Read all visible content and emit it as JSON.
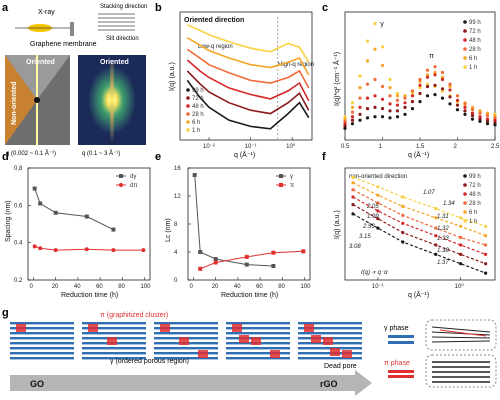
{
  "panel_labels": [
    "a",
    "b",
    "c",
    "d",
    "e",
    "f",
    "g"
  ],
  "panel_a": {
    "xray_label": "X-ray",
    "membrane_label": "Graphene membrane",
    "stacking_label": "Stacking direction",
    "slit_label": "Slit direction",
    "oriented_label": "Oriented",
    "nonoriented_label": "Non-oriented",
    "left_range": "q (0.002 ~ 0.1 Å⁻¹)",
    "right_range": "q (0.1 ~ 3 Å⁻¹)"
  },
  "panel_g": {
    "pi_cluster_label": "π (graphitized cluster)",
    "gamma_region_label": "γ (ordered porous region)",
    "dead_pore_label": "Dead pore",
    "gamma_phase_label": "γ phase",
    "pi_phase_label": "π phase",
    "start_label": "GO",
    "end_label": "rGO"
  },
  "colors": {
    "h99": "#1a1a1a",
    "h72": "#8b1a1a",
    "h48": "#d62728",
    "h28": "#f06a3a",
    "h6": "#f5a623",
    "h1": "#f7d23e",
    "gamma": "#555555",
    "pi": "#e03030",
    "membrane_blue": "#2f6fb2"
  },
  "chart_data": [
    {
      "panel": "b",
      "type": "line",
      "title": "Oriented direction",
      "xlabel": "q (Å⁻¹)",
      "ylabel": "I(q) (a.u.)",
      "x_scale": "log",
      "y_scale": "log",
      "xlim": [
        0.002,
        3
      ],
      "x_ticks": [
        "10⁻²",
        "10⁻¹",
        "10⁰"
      ],
      "annotations": [
        "Low-q region",
        "High-q region"
      ],
      "legend": [
        "99 h",
        "72 h",
        "48 h",
        "28 h",
        "6 h",
        "1 h"
      ],
      "series": [
        {
          "name": "99 h",
          "x": [
            0.003,
            0.006,
            0.01,
            0.03,
            0.1,
            0.3,
            0.8,
            1.5,
            2.5
          ],
          "y": [
            3.0,
            1.2,
            0.7,
            0.35,
            0.25,
            0.22,
            0.5,
            0.9,
            0.4
          ]
        },
        {
          "name": "72 h",
          "x": [
            0.003,
            0.006,
            0.01,
            0.03,
            0.1,
            0.3,
            0.8,
            1.5,
            2.5
          ],
          "y": [
            5.0,
            2.5,
            1.6,
            0.9,
            0.6,
            0.5,
            0.9,
            1.5,
            0.6
          ]
        },
        {
          "name": "48 h",
          "x": [
            0.003,
            0.006,
            0.01,
            0.03,
            0.1,
            0.3,
            0.8,
            1.5,
            2.5
          ],
          "y": [
            9.0,
            5.0,
            3.5,
            2.0,
            1.4,
            1.1,
            1.7,
            2.6,
            1.0
          ]
        },
        {
          "name": "28 h",
          "x": [
            0.003,
            0.006,
            0.01,
            0.03,
            0.1,
            0.3,
            0.8,
            1.5,
            2.5
          ],
          "y": [
            16.0,
            10.0,
            7.0,
            4.5,
            3.0,
            2.6,
            3.5,
            5.0,
            2.0
          ]
        },
        {
          "name": "6 h",
          "x": [
            0.003,
            0.006,
            0.01,
            0.03,
            0.1,
            0.3,
            0.8,
            1.5,
            2.5
          ],
          "y": [
            30.0,
            20.0,
            15.0,
            10.0,
            7.0,
            6.0,
            8.0,
            10.0,
            4.0
          ]
        },
        {
          "name": "1 h",
          "x": [
            0.003,
            0.006,
            0.01,
            0.03,
            0.1,
            0.3,
            0.8,
            1.5,
            2.5
          ],
          "y": [
            60.0,
            45.0,
            35.0,
            24.0,
            17.0,
            14.0,
            22.0,
            18.0,
            8.0
          ]
        }
      ]
    },
    {
      "panel": "c",
      "type": "scatter",
      "xlabel": "q (Å⁻¹)",
      "ylabel": "I(q)*q² (cm⁻¹ Å⁻¹)",
      "xlim": [
        0.5,
        2.5
      ],
      "x_ticks": [
        0.5,
        1.0,
        1.5,
        2.0,
        2.5
      ],
      "annotations": [
        "γ",
        "π"
      ],
      "legend": [
        "99 h",
        "72 h",
        "48 h",
        "28 h",
        "6 h",
        "1 h"
      ],
      "series": [
        {
          "name": "1 h",
          "x": [
            0.5,
            0.6,
            0.7,
            0.8,
            0.9,
            1.0,
            1.1,
            1.2,
            1.3,
            1.4,
            1.5,
            1.6,
            1.7,
            1.8,
            1.9,
            2.0,
            2.1,
            2.2,
            2.3,
            2.4,
            2.5
          ],
          "y": [
            20,
            32,
            55,
            85,
            100,
            80,
            52,
            40,
            38,
            40,
            45,
            48,
            46,
            42,
            38,
            33,
            30,
            27,
            25,
            23,
            22
          ]
        },
        {
          "name": "6 h",
          "x": [
            0.5,
            0.6,
            0.7,
            0.8,
            0.9,
            1.0,
            1.1,
            1.2,
            1.3,
            1.4,
            1.5,
            1.6,
            1.7,
            1.8,
            1.9,
            2.0,
            2.1,
            2.2,
            2.3,
            2.4,
            2.5
          ],
          "y": [
            18,
            28,
            45,
            68,
            78,
            64,
            45,
            38,
            38,
            42,
            50,
            56,
            58,
            54,
            46,
            38,
            32,
            28,
            25,
            23,
            21
          ]
        },
        {
          "name": "28 h",
          "x": [
            0.5,
            0.6,
            0.7,
            0.8,
            0.9,
            1.0,
            1.1,
            1.2,
            1.3,
            1.4,
            1.5,
            1.6,
            1.7,
            1.8,
            1.9,
            2.0,
            2.1,
            2.2,
            2.3,
            2.4,
            2.5
          ],
          "y": [
            16,
            24,
            36,
            48,
            52,
            46,
            38,
            34,
            36,
            42,
            52,
            60,
            63,
            58,
            48,
            38,
            31,
            26,
            23,
            21,
            19
          ]
        },
        {
          "name": "48 h",
          "x": [
            0.5,
            0.6,
            0.7,
            0.8,
            0.9,
            1.0,
            1.1,
            1.2,
            1.3,
            1.4,
            1.5,
            1.6,
            1.7,
            1.8,
            1.9,
            2.0,
            2.1,
            2.2,
            2.3,
            2.4,
            2.5
          ],
          "y": [
            14,
            20,
            28,
            36,
            38,
            35,
            31,
            30,
            32,
            38,
            47,
            54,
            56,
            52,
            43,
            34,
            28,
            23,
            20,
            18,
            17
          ]
        },
        {
          "name": "72 h",
          "x": [
            0.5,
            0.6,
            0.7,
            0.8,
            0.9,
            1.0,
            1.1,
            1.2,
            1.3,
            1.4,
            1.5,
            1.6,
            1.7,
            1.8,
            1.9,
            2.0,
            2.1,
            2.2,
            2.3,
            2.4,
            2.5
          ],
          "y": [
            12,
            17,
            22,
            27,
            28,
            27,
            25,
            25,
            28,
            33,
            40,
            46,
            47,
            44,
            37,
            30,
            25,
            21,
            18,
            16,
            15
          ]
        },
        {
          "name": "99 h",
          "x": [
            0.5,
            0.6,
            0.7,
            0.8,
            0.9,
            1.0,
            1.1,
            1.2,
            1.3,
            1.4,
            1.5,
            1.6,
            1.7,
            1.8,
            1.9,
            2.0,
            2.1,
            2.2,
            2.3,
            2.4,
            2.5
          ],
          "y": [
            10,
            14,
            17,
            19,
            20,
            20,
            19,
            20,
            22,
            27,
            33,
            38,
            39,
            36,
            31,
            26,
            22,
            18,
            16,
            14,
            13
          ]
        }
      ]
    },
    {
      "panel": "d",
      "type": "line",
      "xlabel": "Reduction time (h)",
      "ylabel": "Spacing (nm)",
      "xlim": [
        -5,
        105
      ],
      "ylim": [
        0.2,
        0.8
      ],
      "x_ticks": [
        0,
        20,
        40,
        60,
        80,
        100
      ],
      "y_ticks": [
        0.2,
        0.4,
        0.6,
        0.8
      ],
      "legend": [
        "dγ",
        "dπ"
      ],
      "series": [
        {
          "name": "dγ",
          "x": [
            1,
            6,
            20,
            48,
            72
          ],
          "y": [
            0.69,
            0.61,
            0.56,
            0.54,
            0.47
          ]
        },
        {
          "name": "dπ",
          "x": [
            1,
            6,
            20,
            48,
            72,
            99
          ],
          "y": [
            0.38,
            0.37,
            0.36,
            0.365,
            0.36,
            0.36
          ]
        }
      ]
    },
    {
      "panel": "e",
      "type": "line",
      "xlabel": "Reduction time (h)",
      "ylabel": "Lc (nm)",
      "xlim": [
        -5,
        105
      ],
      "ylim": [
        0,
        16
      ],
      "x_ticks": [
        0,
        20,
        40,
        60,
        80,
        100
      ],
      "y_ticks": [
        0,
        4,
        8,
        12,
        16
      ],
      "legend": [
        "γ",
        "π"
      ],
      "series": [
        {
          "name": "γ",
          "x": [
            1,
            6,
            20,
            48,
            72
          ],
          "y": [
            15.0,
            4.0,
            3.0,
            2.2,
            2.0
          ]
        },
        {
          "name": "π",
          "x": [
            6,
            20,
            48,
            72,
            99
          ],
          "y": [
            1.6,
            2.5,
            3.3,
            3.9,
            4.1
          ]
        }
      ]
    },
    {
      "panel": "f",
      "type": "scatter",
      "title": "non-oriented direction",
      "xlabel": "q (Å⁻¹)",
      "ylabel": "I(q) (a.u.)",
      "x_scale": "log",
      "y_scale": "log",
      "x_ticks": [
        "10⁻¹",
        "10⁰"
      ],
      "annotations": [
        "1.07",
        "1.34",
        "1.31",
        "1.32",
        "1.33",
        "1.38",
        "1.37",
        "2.05",
        "1.99",
        "2.53",
        "3.15",
        "3.08",
        "I(q) ∝ q⁻α"
      ],
      "legend": [
        "99 h",
        "72 h",
        "48 h",
        "28 h",
        "6 h",
        "1 h"
      ],
      "series": [
        {
          "name": "1 h",
          "x": [
            0.05,
            0.1,
            0.2,
            0.5,
            1.0,
            2.0
          ],
          "y": [
            300,
            150,
            70,
            30,
            15,
            8
          ]
        },
        {
          "name": "6 h",
          "x": [
            0.05,
            0.1,
            0.2,
            0.5,
            1.0,
            2.0
          ],
          "y": [
            200,
            80,
            35,
            15,
            8,
            4
          ]
        },
        {
          "name": "28 h",
          "x": [
            0.05,
            0.1,
            0.2,
            0.5,
            1.0,
            2.0
          ],
          "y": [
            120,
            45,
            18,
            7,
            3.5,
            2
          ]
        },
        {
          "name": "48 h",
          "x": [
            0.05,
            0.1,
            0.2,
            0.5,
            1.0,
            2.0
          ],
          "y": [
            70,
            25,
            10,
            4,
            2,
            1
          ]
        },
        {
          "name": "72 h",
          "x": [
            0.05,
            0.1,
            0.2,
            0.5,
            1.0,
            2.0
          ],
          "y": [
            40,
            14,
            5,
            2,
            1,
            0.5
          ]
        },
        {
          "name": "99 h",
          "x": [
            0.05,
            0.1,
            0.2,
            0.5,
            1.0,
            2.0
          ],
          "y": [
            20,
            7,
            2.5,
            1,
            0.5,
            0.25
          ]
        }
      ]
    }
  ]
}
